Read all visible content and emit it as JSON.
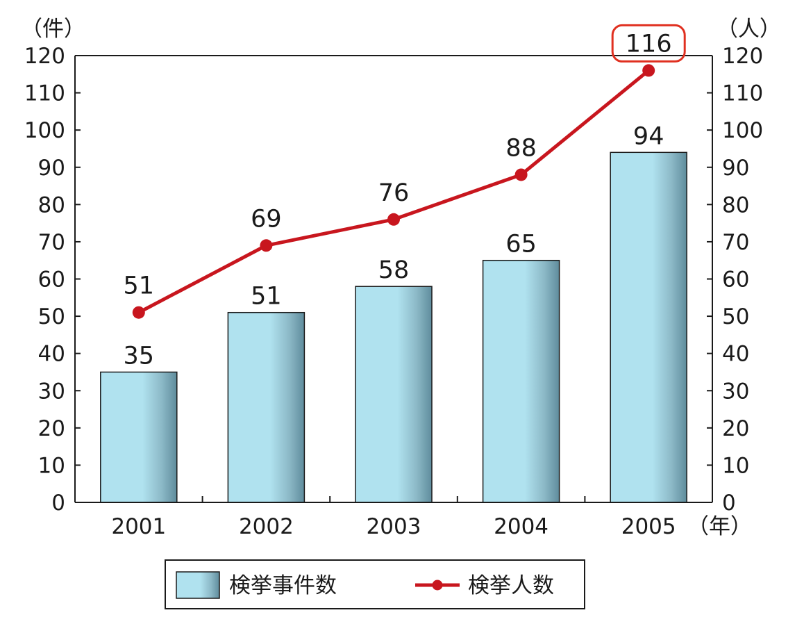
{
  "chart_data": {
    "type": "bar+line",
    "categories": [
      "2001",
      "2002",
      "2003",
      "2004",
      "2005"
    ],
    "x_unit": "（年）",
    "series": [
      {
        "name": "検挙事件数",
        "type": "bar",
        "axis": "left",
        "values": [
          35,
          51,
          58,
          65,
          94
        ]
      },
      {
        "name": "検挙人数",
        "type": "line",
        "axis": "right",
        "values": [
          51,
          69,
          76,
          88,
          116
        ]
      }
    ],
    "left_axis": {
      "unit": "（件）",
      "ylim": [
        0,
        120
      ],
      "ticks": [
        0,
        10,
        20,
        30,
        40,
        50,
        60,
        70,
        80,
        90,
        100,
        110,
        120
      ]
    },
    "right_axis": {
      "unit": "（人）",
      "ylim": [
        0,
        120
      ],
      "ticks": [
        0,
        10,
        20,
        30,
        40,
        50,
        60,
        70,
        80,
        90,
        100,
        110,
        120
      ]
    },
    "highlighted_point": {
      "series": "検挙人数",
      "category": "2005",
      "value": 116
    },
    "legend": {
      "placement": "bottom-center",
      "entries": [
        "検挙事件数",
        "検挙人数"
      ]
    },
    "colors": {
      "bar_fill": "#b0e2ef",
      "bar_shade": "#5f8c9c",
      "line": "#c8161e",
      "highlight": "#e03020",
      "axis": "#1a1a1a"
    }
  }
}
